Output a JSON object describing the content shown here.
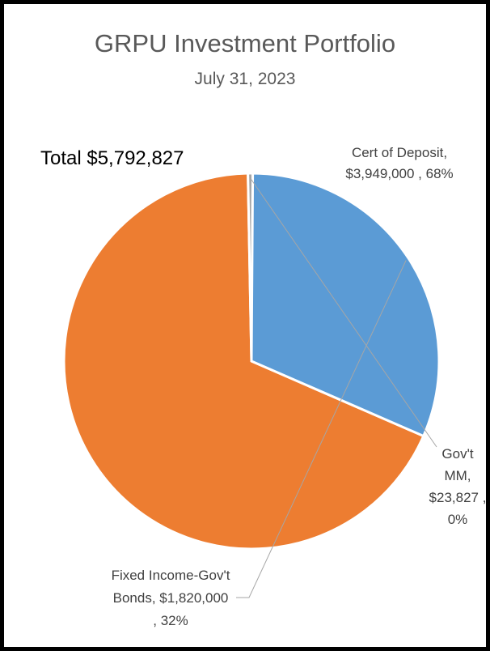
{
  "chart_data": {
    "type": "pie",
    "title": "GRPU Investment Portfolio",
    "subtitle": "July 31, 2023",
    "annotation": "Total $5,792,827",
    "slices": [
      {
        "name": "Cert of Deposit",
        "value": 3949000,
        "value_label": "$3,949,000",
        "percent_label": "68%",
        "color": "#ED7D31"
      },
      {
        "name": "Gov't MM",
        "value": 23827,
        "value_label": "$23,827",
        "percent_label": "0%",
        "color": "#A5A5A5"
      },
      {
        "name": "Fixed Income-Gov't Bonds",
        "value": 1820000,
        "value_label": "$1,820,000",
        "percent_label": "32%",
        "color": "#5B9BD5"
      }
    ],
    "labels": [
      {
        "lines": [
          "Cert of Deposit,",
          "$3,949,000 , 68%"
        ]
      },
      {
        "lines": [
          "Gov't",
          "MM,",
          "$23,827 ,",
          "0%"
        ]
      },
      {
        "lines": [
          "Fixed Income-Gov't",
          "Bonds,  $1,820,000",
          ", 32%"
        ]
      }
    ]
  }
}
